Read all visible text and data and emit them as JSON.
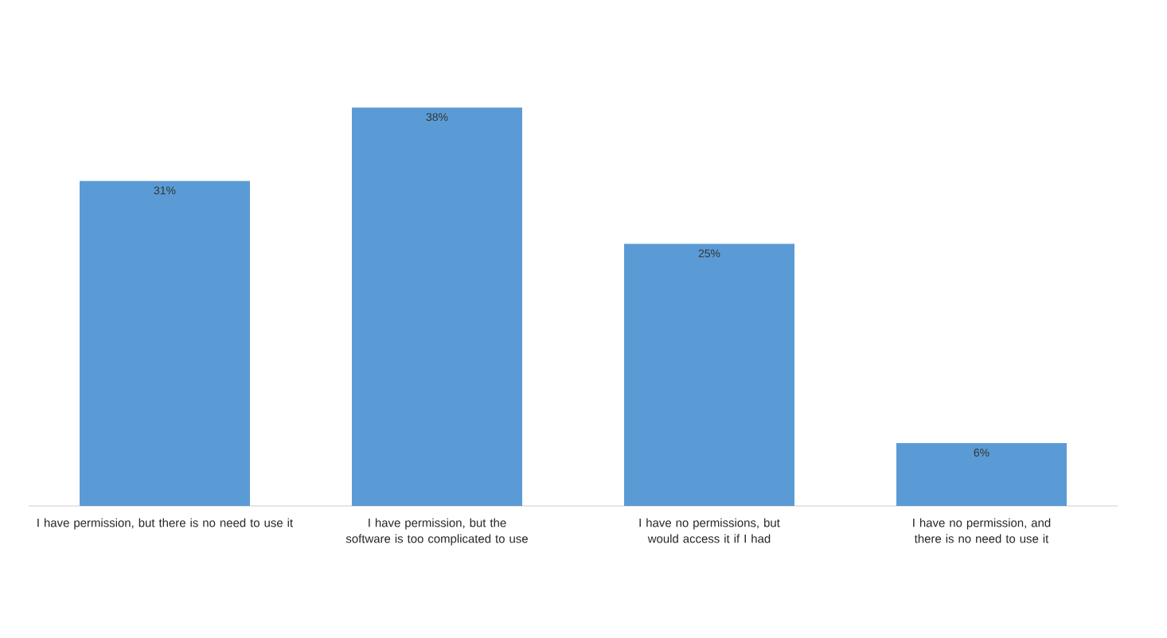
{
  "chart_data": {
    "type": "bar",
    "categories": [
      "I have permission, but there is no need to use it",
      "I have permission, but the software is too complicated to use",
      "I have no permissions, but would access it if I had",
      "I have no permission, and there is no need to use it"
    ],
    "values": [
      31,
      38,
      25,
      6
    ],
    "value_labels": [
      "31%",
      "38%",
      "25%",
      "6%"
    ],
    "color": "#5b9bd5"
  }
}
